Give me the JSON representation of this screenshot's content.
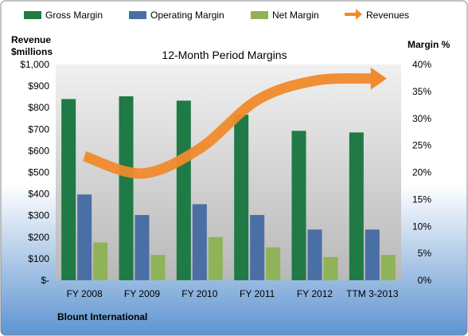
{
  "legend": {
    "items": [
      {
        "label": "Gross Margin",
        "color": "#1f7a46",
        "marker": "square"
      },
      {
        "label": "Operating Margin",
        "color": "#4a6fa5",
        "marker": "square"
      },
      {
        "label": "Net Margin",
        "color": "#8fb358",
        "marker": "square"
      },
      {
        "label": "Revenues",
        "color": "#f08a2c",
        "marker": "arrow"
      }
    ]
  },
  "left_axis_label_line1": "Revenue",
  "left_axis_label_line2": "$millions",
  "right_axis_label": "Margin %",
  "footer": "Blount International",
  "colors": {
    "plot_background_top": "#f0f0f0",
    "plot_background_bottom": "#b8b8b8",
    "frame_gradient_bottom": "#5e94d0",
    "gross": "#1f7a46",
    "operating": "#4a6fa5",
    "net": "#8fb358",
    "revenue": "#f08a2c"
  },
  "chart_data": {
    "type": "bar",
    "title": "12-Month Period Margins",
    "categories": [
      "FY 2008",
      "FY 2009",
      "FY 2010",
      "FY 2011",
      "FY 2012",
      "TTM 3-2013"
    ],
    "series": [
      {
        "name": "Gross Margin",
        "axis": "right",
        "values": [
          33.6,
          34.1,
          33.3,
          30.7,
          27.7,
          27.4
        ]
      },
      {
        "name": "Operating Margin",
        "axis": "right",
        "values": [
          15.9,
          12.1,
          14.1,
          12.1,
          9.4,
          9.4
        ]
      },
      {
        "name": "Net Margin",
        "axis": "right",
        "values": [
          7.0,
          4.7,
          8.0,
          6.1,
          4.3,
          4.7
        ]
      },
      {
        "name": "Revenues",
        "axis": "left",
        "type": "line",
        "values": [
          575,
          495,
          610,
          835,
          925,
          935
        ]
      }
    ],
    "left_axis": {
      "ylim": [
        0,
        1000
      ],
      "ticks": [
        "$-",
        "$100",
        "$200",
        "$300",
        "$400",
        "$500",
        "$600",
        "$700",
        "$800",
        "$900",
        "$1,000"
      ]
    },
    "right_axis": {
      "ylim": [
        0,
        40
      ],
      "ticks": [
        "0%",
        "5%",
        "10%",
        "15%",
        "20%",
        "25%",
        "30%",
        "35%",
        "40%"
      ]
    },
    "grid": false,
    "legend_position": "top"
  }
}
